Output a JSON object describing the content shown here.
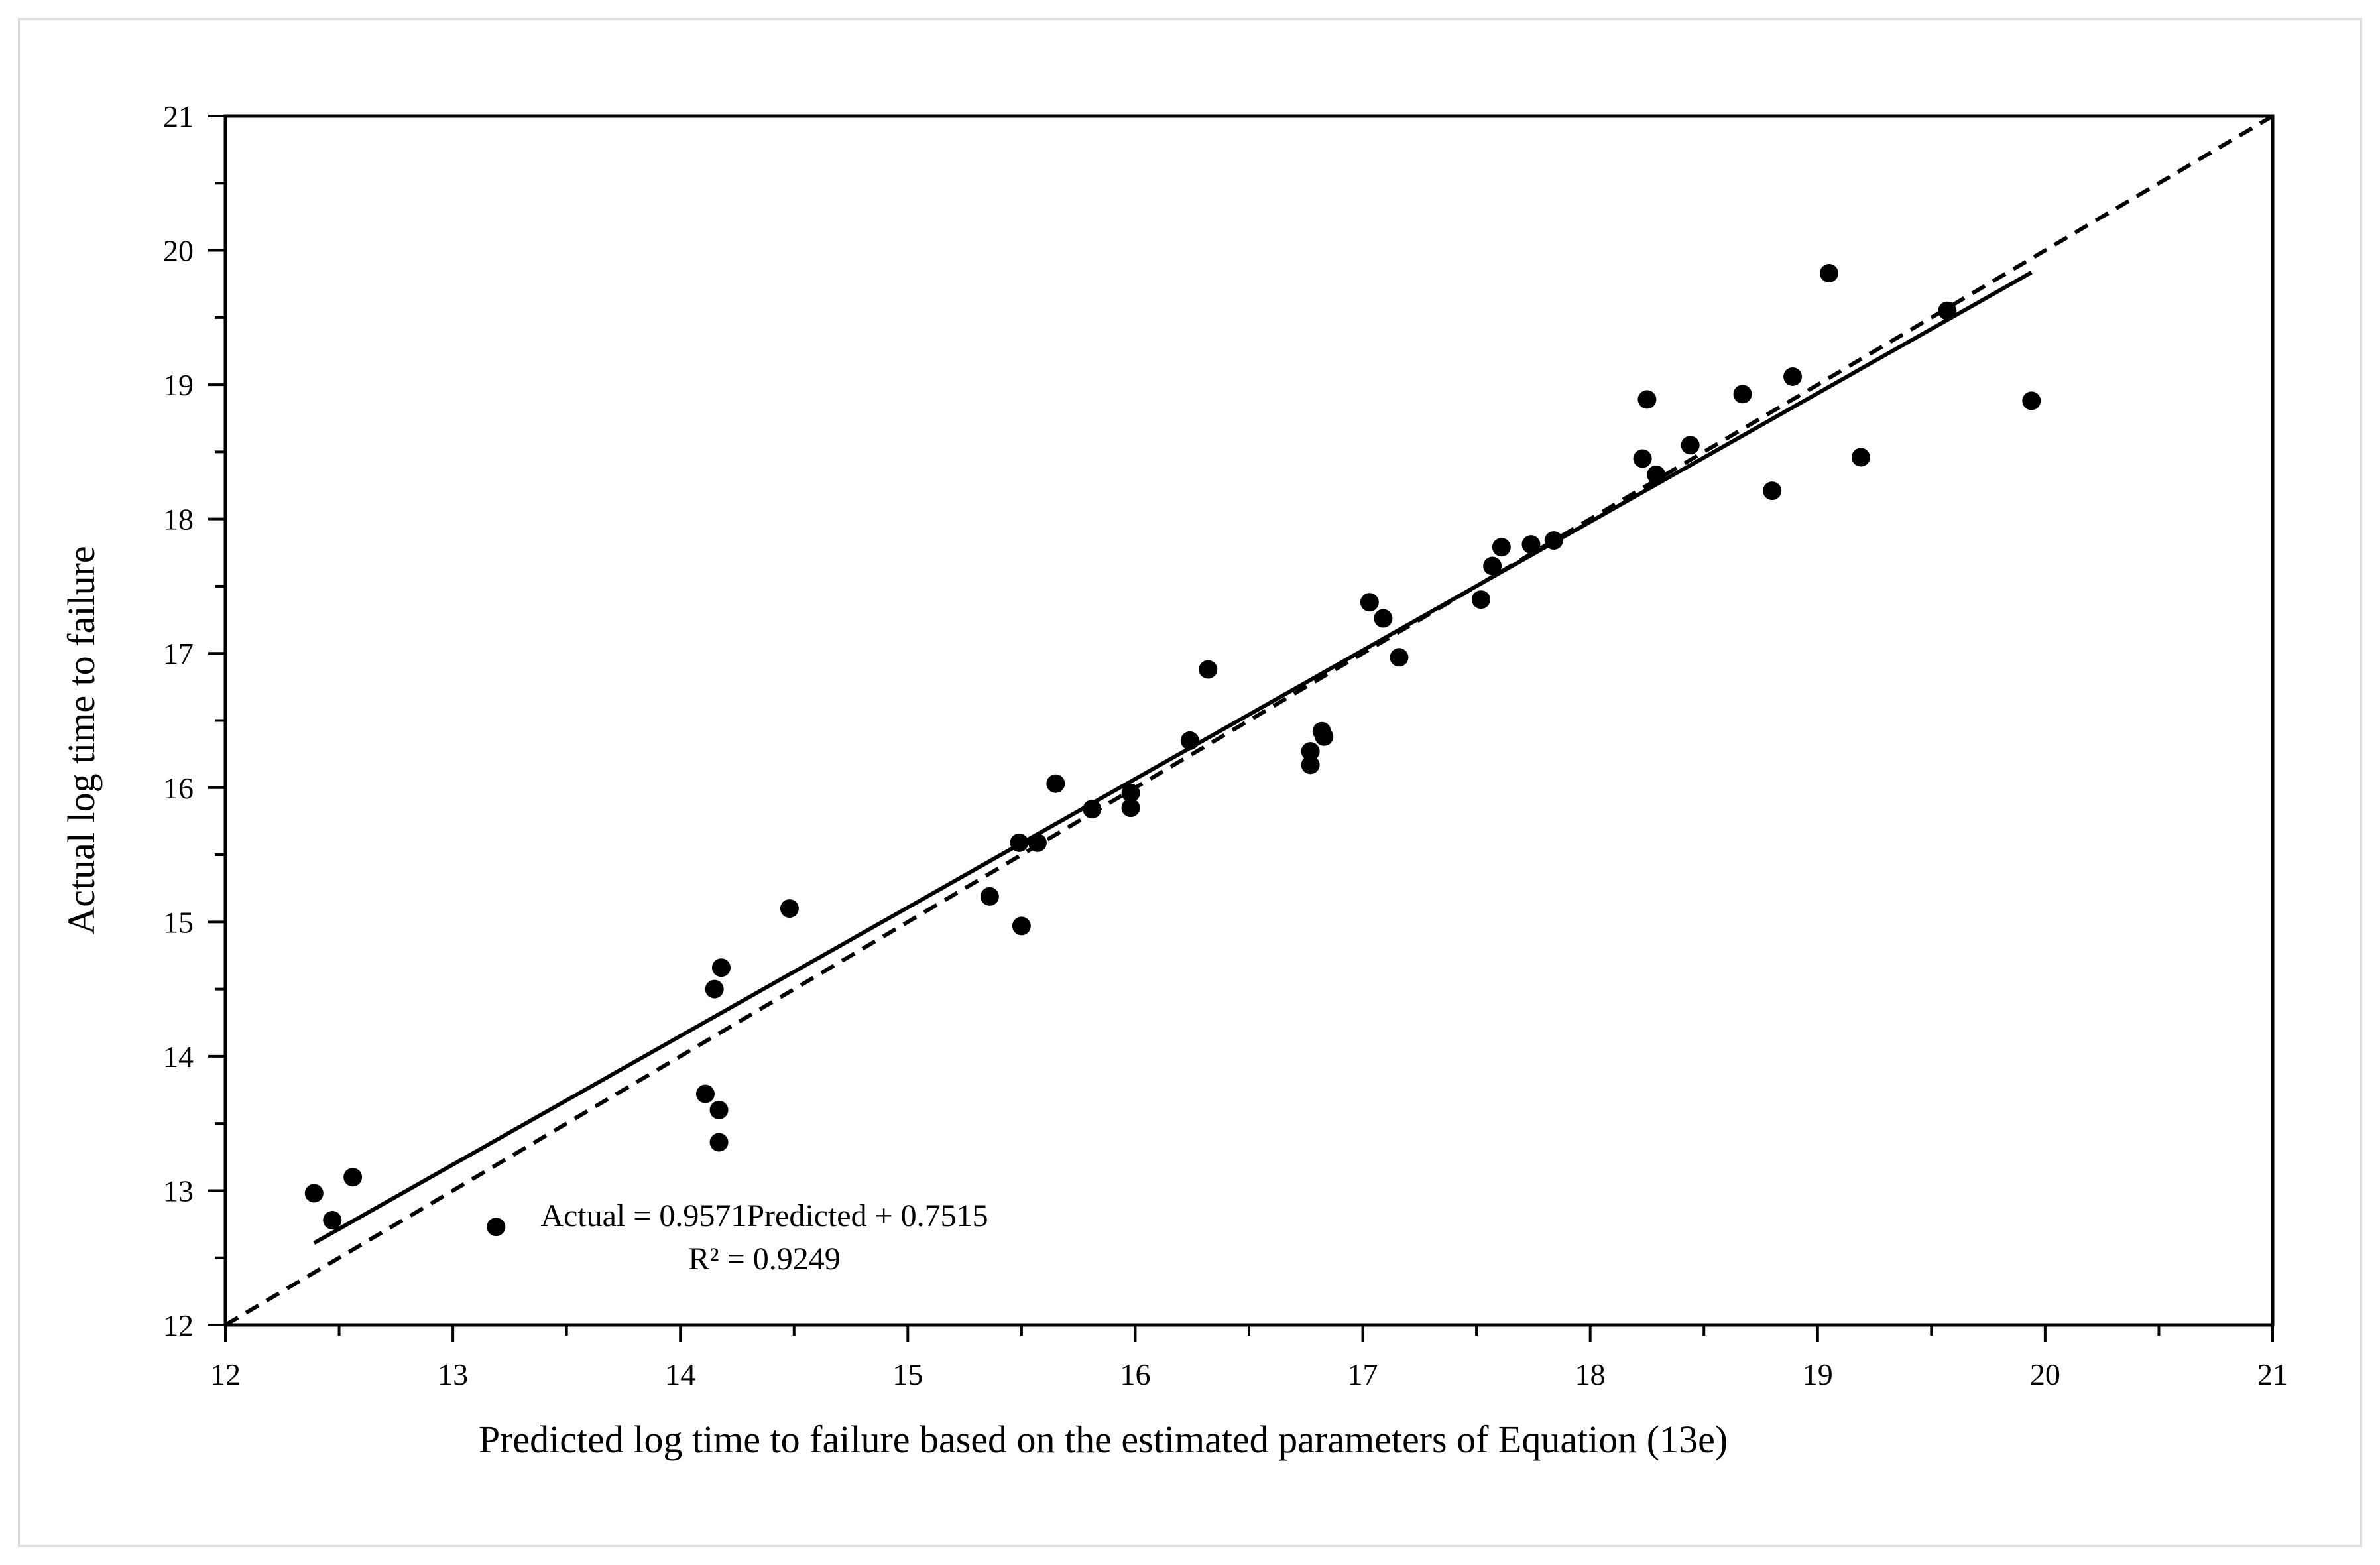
{
  "chart_data": {
    "type": "scatter",
    "xlabel": "Predicted log time to failure based on the estimated parameters of Equation (13e)",
    "ylabel": "Actual log time to failure",
    "xlim": [
      12,
      21
    ],
    "ylim": [
      12,
      21
    ],
    "x_ticks": [
      12,
      13,
      14,
      15,
      16,
      17,
      18,
      19,
      20,
      21
    ],
    "y_ticks": [
      12,
      13,
      14,
      15,
      16,
      17,
      18,
      19,
      20,
      21
    ],
    "grid": false,
    "points": [
      {
        "x": 12.39,
        "y": 12.98
      },
      {
        "x": 12.47,
        "y": 12.78
      },
      {
        "x": 12.56,
        "y": 13.1
      },
      {
        "x": 13.19,
        "y": 12.73
      },
      {
        "x": 14.11,
        "y": 13.72
      },
      {
        "x": 14.15,
        "y": 14.5
      },
      {
        "x": 14.17,
        "y": 13.6
      },
      {
        "x": 14.17,
        "y": 13.36
      },
      {
        "x": 14.18,
        "y": 14.66
      },
      {
        "x": 14.48,
        "y": 15.1
      },
      {
        "x": 15.36,
        "y": 15.19
      },
      {
        "x": 15.49,
        "y": 15.59
      },
      {
        "x": 15.5,
        "y": 14.97
      },
      {
        "x": 15.57,
        "y": 15.59
      },
      {
        "x": 15.65,
        "y": 16.03
      },
      {
        "x": 15.81,
        "y": 15.84
      },
      {
        "x": 15.98,
        "y": 15.96
      },
      {
        "x": 15.98,
        "y": 15.85
      },
      {
        "x": 16.24,
        "y": 16.35
      },
      {
        "x": 16.32,
        "y": 16.88
      },
      {
        "x": 16.77,
        "y": 16.27
      },
      {
        "x": 16.77,
        "y": 16.17
      },
      {
        "x": 16.82,
        "y": 16.42
      },
      {
        "x": 16.83,
        "y": 16.38
      },
      {
        "x": 17.03,
        "y": 17.38
      },
      {
        "x": 17.09,
        "y": 17.26
      },
      {
        "x": 17.16,
        "y": 16.97
      },
      {
        "x": 17.52,
        "y": 17.4
      },
      {
        "x": 17.57,
        "y": 17.65
      },
      {
        "x": 17.61,
        "y": 17.79
      },
      {
        "x": 17.74,
        "y": 17.81
      },
      {
        "x": 17.84,
        "y": 17.84
      },
      {
        "x": 18.23,
        "y": 18.45
      },
      {
        "x": 18.25,
        "y": 18.89
      },
      {
        "x": 18.29,
        "y": 18.33
      },
      {
        "x": 18.44,
        "y": 18.55
      },
      {
        "x": 18.67,
        "y": 18.93
      },
      {
        "x": 18.8,
        "y": 18.21
      },
      {
        "x": 18.89,
        "y": 19.06
      },
      {
        "x": 19.05,
        "y": 19.83
      },
      {
        "x": 19.19,
        "y": 18.46
      },
      {
        "x": 19.57,
        "y": 19.55
      },
      {
        "x": 19.94,
        "y": 18.88
      }
    ],
    "trendline": {
      "slope": 0.9571,
      "intercept": 0.7515,
      "x_range": [
        12.39,
        19.94
      ],
      "style": "solid"
    },
    "reference_line": {
      "slope": 1,
      "intercept": 0,
      "x_range": [
        12,
        21
      ],
      "style": "dashed"
    },
    "annotations": [
      "Actual = 0.9571Predicted + 0.7515",
      "R² = 0.9249"
    ]
  }
}
